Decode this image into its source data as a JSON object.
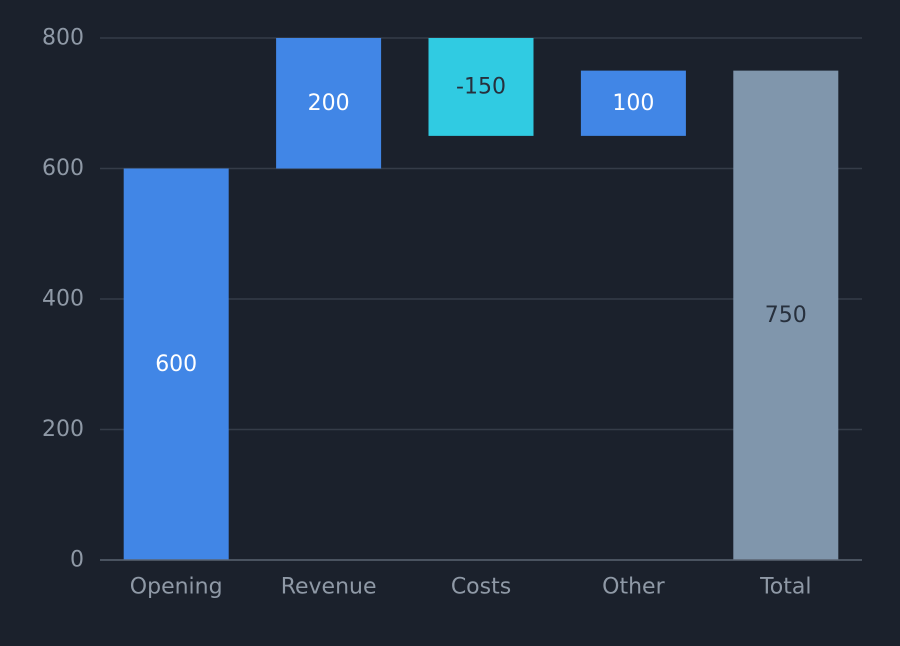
{
  "chart_data": {
    "type": "bar",
    "subtype": "waterfall",
    "title": "",
    "xlabel": "",
    "ylabel": "",
    "ylim": [
      0,
      800
    ],
    "yticks": [
      0,
      200,
      400,
      600,
      800
    ],
    "grid": true,
    "legend": "none",
    "categories": [
      "Opening",
      "Revenue",
      "Costs",
      "Other",
      "Total"
    ],
    "values": [
      600,
      200,
      -150,
      100,
      750
    ],
    "bar_types": [
      "start",
      "increase",
      "decrease",
      "increase",
      "total"
    ],
    "data_labels": [
      "600",
      "200",
      "-150",
      "100",
      "750"
    ]
  },
  "colors": {
    "background": "#1b212c",
    "grid": "#353c48",
    "axis": "#5b6471",
    "tick_text": "#8f99a6",
    "start": "#4186e6",
    "increase": "#4186e6",
    "decrease": "#30cbe2",
    "total": "#8096ac",
    "label_light": "#ffffff",
    "label_dark": "#27303d"
  }
}
